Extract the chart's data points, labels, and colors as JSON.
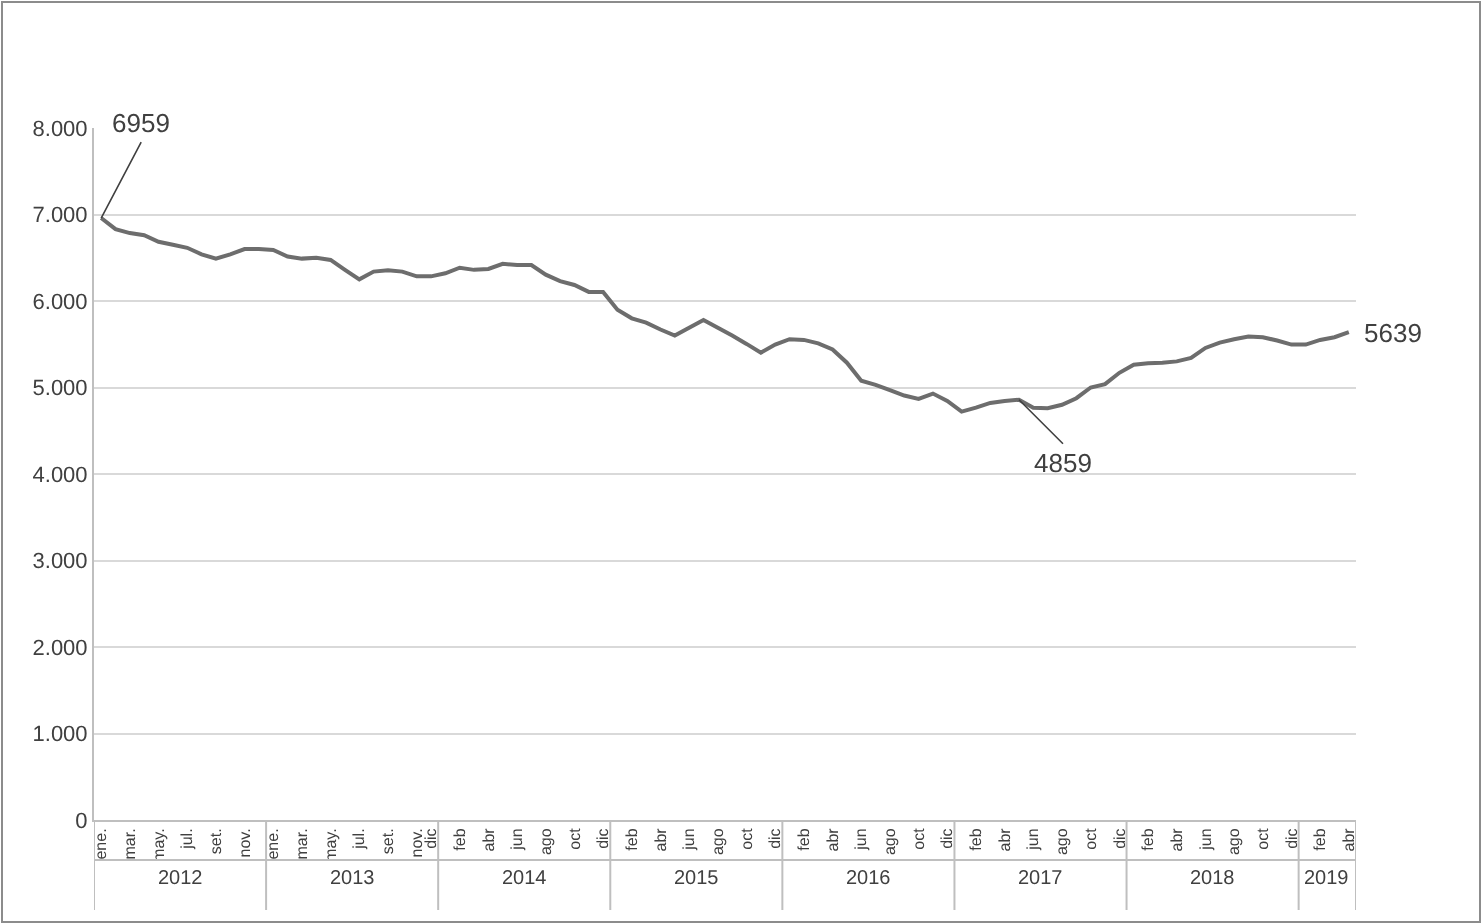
{
  "chart_data": {
    "type": "line",
    "categories": [
      "ene.",
      null,
      "mar.",
      null,
      "may.",
      null,
      "jul.",
      null,
      "set.",
      null,
      "nov.",
      null,
      "ene.",
      null,
      "mar.",
      null,
      "may.",
      null,
      "jul.",
      null,
      "set.",
      null,
      "nov.",
      "dic",
      null,
      "feb",
      null,
      "abr",
      null,
      "jun",
      null,
      "ago",
      null,
      "oct",
      null,
      "dic",
      null,
      "feb",
      null,
      "abr",
      null,
      "jun",
      null,
      "ago",
      null,
      "oct",
      null,
      "dic",
      null,
      "feb",
      null,
      "abr",
      null,
      "jun",
      null,
      "ago",
      null,
      "oct",
      null,
      "dic",
      null,
      "feb",
      null,
      "abr",
      null,
      "jun",
      null,
      "ago",
      null,
      "oct",
      null,
      "dic",
      null,
      "feb",
      null,
      "abr",
      null,
      "jun",
      null,
      "ago",
      null,
      "oct",
      null,
      "dic",
      null,
      "feb",
      null,
      "abr"
    ],
    "series": [
      {
        "color": "#6d6d6d",
        "values": [
          6959,
          6830,
          6785,
          6760,
          6685,
          6650,
          6615,
          6540,
          6490,
          6540,
          6600,
          6600,
          6590,
          6515,
          6490,
          6500,
          6475,
          6360,
          6250,
          6340,
          6355,
          6340,
          6285,
          6285,
          6320,
          6385,
          6360,
          6370,
          6430,
          6415,
          6415,
          6305,
          6230,
          6185,
          6105,
          6105,
          5900,
          5800,
          5750,
          5670,
          5600,
          5690,
          5780,
          5690,
          5600,
          5504,
          5403,
          5496,
          5558,
          5550,
          5510,
          5440,
          5287,
          5078,
          5031,
          4969,
          4907,
          4868,
          4930,
          4845,
          4721,
          4767,
          4822,
          4845,
          4859,
          4767,
          4760,
          4800,
          4876,
          5000,
          5039,
          5170,
          5263,
          5279,
          5287,
          5302,
          5341,
          5457,
          5519,
          5558,
          5589,
          5581,
          5543,
          5496,
          5496,
          5550,
          5581,
          5639
        ],
        "value_labels": [
          "6959",
          null,
          null,
          null,
          null,
          null,
          null,
          null,
          null,
          null,
          null,
          null,
          null,
          null,
          null,
          null,
          null,
          null,
          null,
          null,
          null,
          null,
          null,
          null,
          null,
          null,
          null,
          null,
          null,
          null,
          null,
          null,
          null,
          null,
          null,
          null,
          null,
          null,
          null,
          null,
          null,
          null,
          null,
          null,
          null,
          null,
          null,
          null,
          null,
          null,
          null,
          null,
          null,
          null,
          null,
          null,
          null,
          null,
          null,
          null,
          null,
          null,
          null,
          null,
          "4859",
          null,
          null,
          null,
          null,
          null,
          null,
          null,
          null,
          null,
          null,
          null,
          null,
          null,
          null,
          null,
          null,
          null,
          null,
          null,
          null,
          null,
          null,
          "5639"
        ]
      }
    ],
    "annotations": [
      "2012",
      "2013",
      "2014",
      "2015",
      "2016",
      "2017",
      "2018",
      "2019"
    ],
    "ylim": [
      0,
      8000
    ],
    "yticks": [
      0,
      {
        "value": 1000,
        "label": "1.000"
      },
      {
        "value": 2000,
        "label": "2.000"
      },
      {
        "value": 3000,
        "label": "3.000"
      },
      {
        "value": 4000,
        "label": "4.000"
      },
      {
        "value": 5000,
        "label": "5.000"
      },
      {
        "value": 6000,
        "label": "6.000"
      },
      {
        "value": 7000,
        "label": "7.000"
      },
      {
        "value": 8000,
        "label": "8.000"
      }
    ],
    "grid": "y",
    "marker": "none",
    "line_style": "solid"
  }
}
